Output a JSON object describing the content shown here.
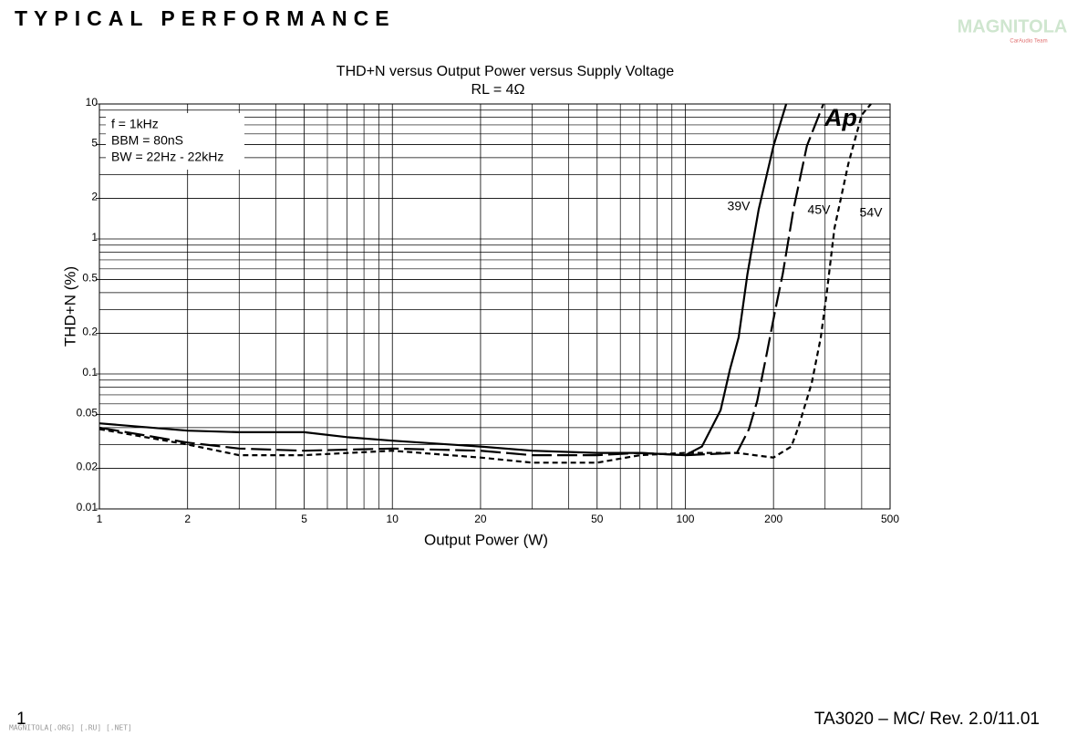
{
  "header": {
    "title": "TYPICAL PERFORMANCE",
    "logo": "MAGNITOLA",
    "logo_tagline": "CarAudio Team"
  },
  "footer": {
    "page": "1",
    "doc_id": "TA3020 – MC/ Rev. 2.0/11.01",
    "watermark": "MAGNITOLA[.ORG] [.RU] [.NET]"
  },
  "chart_data": {
    "type": "line",
    "title": "THD+N versus Output Power versus Supply Voltage",
    "subtitle": "RL = 4Ω",
    "x_label": "Output Power (W)",
    "y_label": "THD+N (%)",
    "annotations": [
      "f = 1kHz",
      "BBM = 80nS",
      "BW = 22Hz - 22kHz",
      "Ap"
    ],
    "x_log": true,
    "y_log": true,
    "grid": true,
    "xlim": [
      1,
      500
    ],
    "ylim": [
      0.01,
      10
    ],
    "xticks": [
      1,
      2,
      5,
      10,
      20,
      50,
      100,
      200,
      500
    ],
    "yticks": [
      0.01,
      0.02,
      0.05,
      0.1,
      0.2,
      0.5,
      1,
      2,
      5,
      10
    ],
    "xgrid_minor": [
      3,
      4,
      6,
      7,
      8,
      9,
      30,
      40,
      60,
      70,
      80,
      90,
      300,
      400
    ],
    "ygrid_minor": [
      0.03,
      0.04,
      0.06,
      0.07,
      0.08,
      0.09,
      0.3,
      0.4,
      0.6,
      0.7,
      0.8,
      0.9,
      3,
      4,
      6,
      7,
      8,
      9
    ],
    "series": [
      {
        "name": "39V",
        "color": "#000000",
        "style": "solid",
        "x": [
          1,
          2,
          3,
          5,
          7,
          10,
          20,
          30,
          50,
          70,
          100,
          114,
          132,
          142,
          152,
          163,
          178,
          200,
          221
        ],
        "values": [
          0.043,
          0.038,
          0.037,
          0.037,
          0.034,
          0.032,
          0.029,
          0.027,
          0.026,
          0.026,
          0.025,
          0.029,
          0.054,
          0.108,
          0.186,
          0.55,
          1.65,
          4.9,
          10
        ]
      },
      {
        "name": "45V",
        "color": "#000000",
        "style": "long-dash",
        "x": [
          1,
          2,
          3,
          5,
          10,
          20,
          30,
          50,
          70,
          100,
          150,
          165,
          176,
          189,
          203,
          215,
          234,
          260,
          296
        ],
        "values": [
          0.04,
          0.031,
          0.028,
          0.027,
          0.028,
          0.027,
          0.025,
          0.025,
          0.026,
          0.025,
          0.026,
          0.039,
          0.063,
          0.136,
          0.3,
          0.55,
          1.66,
          4.9,
          10
        ]
      },
      {
        "name": "54V",
        "color": "#000000",
        "style": "short-dash",
        "x": [
          1,
          2,
          3,
          5,
          10,
          20,
          30,
          50,
          70,
          100,
          150,
          200,
          230,
          243,
          270,
          290,
          304,
          323,
          360,
          400,
          430
        ],
        "values": [
          0.039,
          0.03,
          0.025,
          0.025,
          0.027,
          0.024,
          0.022,
          0.022,
          0.025,
          0.026,
          0.026,
          0.024,
          0.029,
          0.04,
          0.085,
          0.186,
          0.4,
          1.2,
          3.6,
          8.3,
          10
        ]
      }
    ]
  }
}
